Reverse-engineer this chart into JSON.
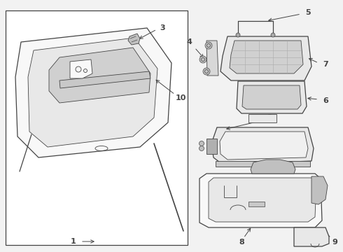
{
  "background_color": "#f2f2f2",
  "line_color": "#444444",
  "fill_light": "#f8f8f8",
  "fill_gray": "#e8e8e8",
  "fill_dark": "#d0d0d0",
  "figsize": [
    4.9,
    3.6
  ],
  "dpi": 100
}
